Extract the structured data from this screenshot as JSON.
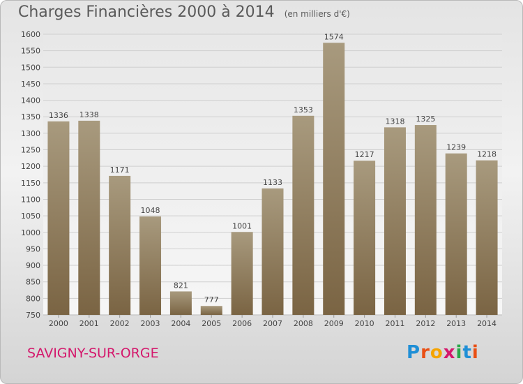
{
  "header": {
    "title": "Charges Financières 2000 à 2014",
    "subtitle": "(en milliers d'€)"
  },
  "footer": {
    "place": "SAVIGNY-SUR-ORGE",
    "brand": "Proxiti"
  },
  "colors": {
    "bar_top": "#a89a7e",
    "bar_bottom": "#7a6443",
    "grid": "#cfcfcf",
    "axis_text": "#444444",
    "place_name": "#d4186c",
    "brand_letters": [
      "#1f8fd6",
      "#e94f14",
      "#f5a400",
      "#d4186c",
      "#2aa84a",
      "#1f8fd6",
      "#e94f14"
    ]
  },
  "chart_data": {
    "type": "bar",
    "title": "Charges Financières 2000 à 2014",
    "subtitle": "(en milliers d'€)",
    "xlabel": "",
    "ylabel": "",
    "categories": [
      "2000",
      "2001",
      "2002",
      "2003",
      "2004",
      "2005",
      "2006",
      "2007",
      "2008",
      "2009",
      "2010",
      "2011",
      "2012",
      "2013",
      "2014"
    ],
    "values": [
      1336,
      1338,
      1171,
      1048,
      821,
      777,
      1001,
      1133,
      1353,
      1574,
      1217,
      1318,
      1325,
      1239,
      1218
    ],
    "ylim": [
      750,
      1600
    ],
    "yticks": [
      750,
      800,
      850,
      900,
      950,
      1000,
      1050,
      1100,
      1150,
      1200,
      1250,
      1300,
      1350,
      1400,
      1450,
      1500,
      1550,
      1600
    ],
    "grid": true,
    "legend": "none",
    "data_labels": true
  }
}
